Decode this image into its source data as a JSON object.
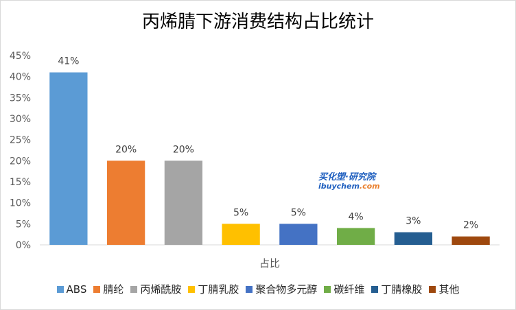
{
  "chart_data": {
    "type": "bar",
    "title": "丙烯腈下游消费结构占比统计",
    "xlabel": "占比",
    "ylabel": "",
    "categories": [
      "ABS",
      "腈纶",
      "丙烯酰胺",
      "丁腈乳胶",
      "聚合物多元醇",
      "碳纤维",
      "丁腈橡胶",
      "其他"
    ],
    "values": [
      41,
      20,
      20,
      5,
      5,
      4,
      3,
      2
    ],
    "value_labels": [
      "41%",
      "20%",
      "20%",
      "5%",
      "5%",
      "4%",
      "3%",
      "2%"
    ],
    "colors": [
      "#5b9bd5",
      "#ed7d31",
      "#a5a5a5",
      "#ffc000",
      "#4472c4",
      "#70ad47",
      "#255e91",
      "#9e480e"
    ],
    "ylim": [
      0,
      45
    ],
    "yticks": [
      "0%",
      "5%",
      "10%",
      "15%",
      "20%",
      "25%",
      "30%",
      "35%",
      "40%",
      "45%"
    ],
    "grid": false,
    "legend": "bottom"
  },
  "watermark": {
    "line1": "买化塑·研究院",
    "line2_prefix": "ibuychem",
    "line2_suffix": ".com"
  }
}
